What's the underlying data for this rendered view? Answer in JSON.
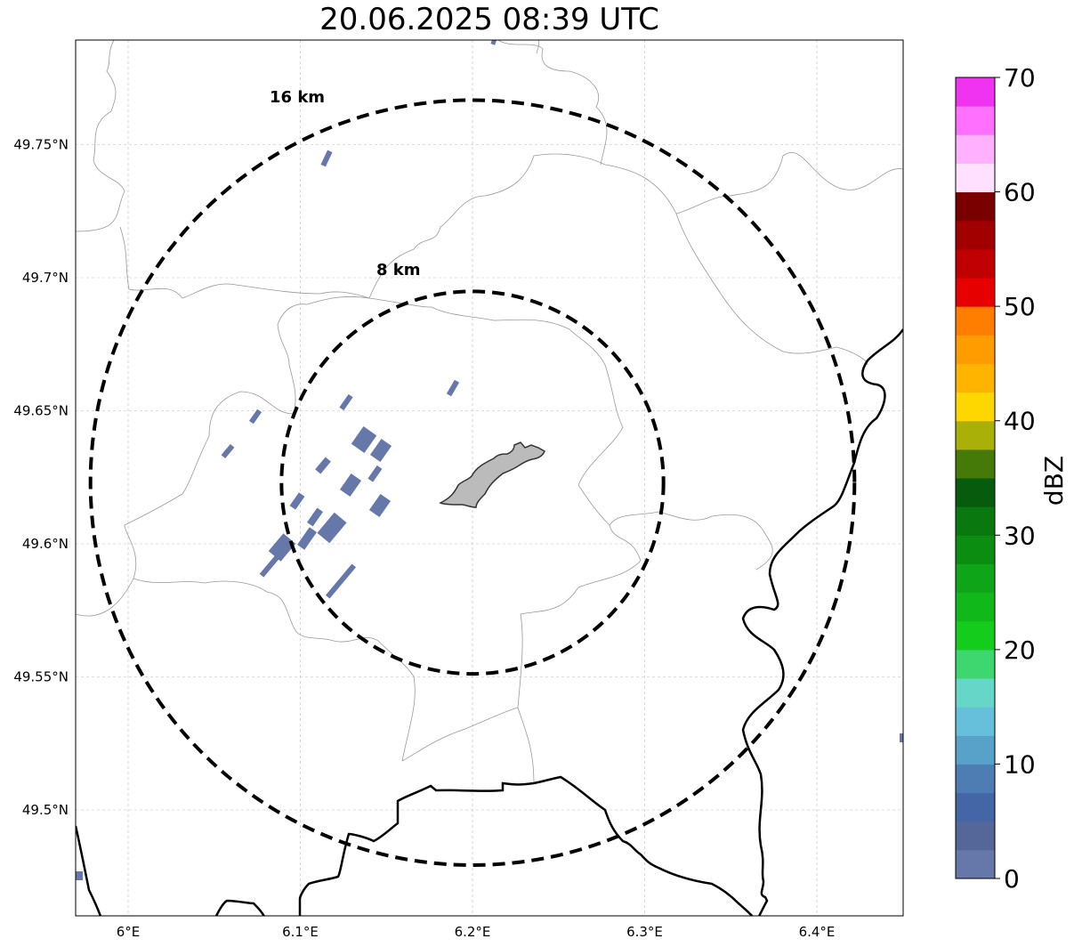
{
  "title": "20.06.2025 08:39 UTC",
  "map": {
    "lon_range": [
      5.97,
      6.45
    ],
    "lat_range": [
      49.46,
      49.79
    ],
    "gridlines": true,
    "x_ticks": [
      {
        "lon": 6.0,
        "label": "6°E"
      },
      {
        "lon": 6.1,
        "label": "6.1°E"
      },
      {
        "lon": 6.2,
        "label": "6.2°E"
      },
      {
        "lon": 6.3,
        "label": "6.3°E"
      },
      {
        "lon": 6.4,
        "label": "6.4°E"
      }
    ],
    "y_ticks": [
      {
        "lat": 49.5,
        "label": "49.5°N"
      },
      {
        "lat": 49.55,
        "label": "49.55°N"
      },
      {
        "lat": 49.6,
        "label": "49.6°N"
      },
      {
        "lat": 49.65,
        "label": "49.65°N"
      },
      {
        "lat": 49.7,
        "label": "49.7°N"
      },
      {
        "lat": 49.75,
        "label": "49.75°N"
      }
    ],
    "radar_center": {
      "lon": 6.2,
      "lat": 49.623
    },
    "range_rings": [
      {
        "radius_km": 8,
        "label": "8 km"
      },
      {
        "radius_km": 16,
        "label": "16 km"
      }
    ]
  },
  "colorbar": {
    "label": "dBZ",
    "min": 0,
    "max": 70,
    "ticks": [
      "0",
      "10",
      "20",
      "30",
      "40",
      "50",
      "60",
      "70"
    ],
    "colors": [
      "#6677aa",
      "#556699",
      "#4466a6",
      "#4d7db3",
      "#58a1c9",
      "#66c0dc",
      "#66d6c8",
      "#3dd66f",
      "#14cc1c",
      "#11b81a",
      "#0ea519",
      "#0b8d12",
      "#08780f",
      "#065c0c",
      "#467a08",
      "#a9b008",
      "#ffd700",
      "#ffb400",
      "#ff9c00",
      "#ff7e00",
      "#e60000",
      "#c00000",
      "#a00000",
      "#7a0000",
      "#ffe0ff",
      "#ffb0ff",
      "#ff70ff",
      "#f033f0"
    ]
  },
  "echo_color": "#6677aa"
}
